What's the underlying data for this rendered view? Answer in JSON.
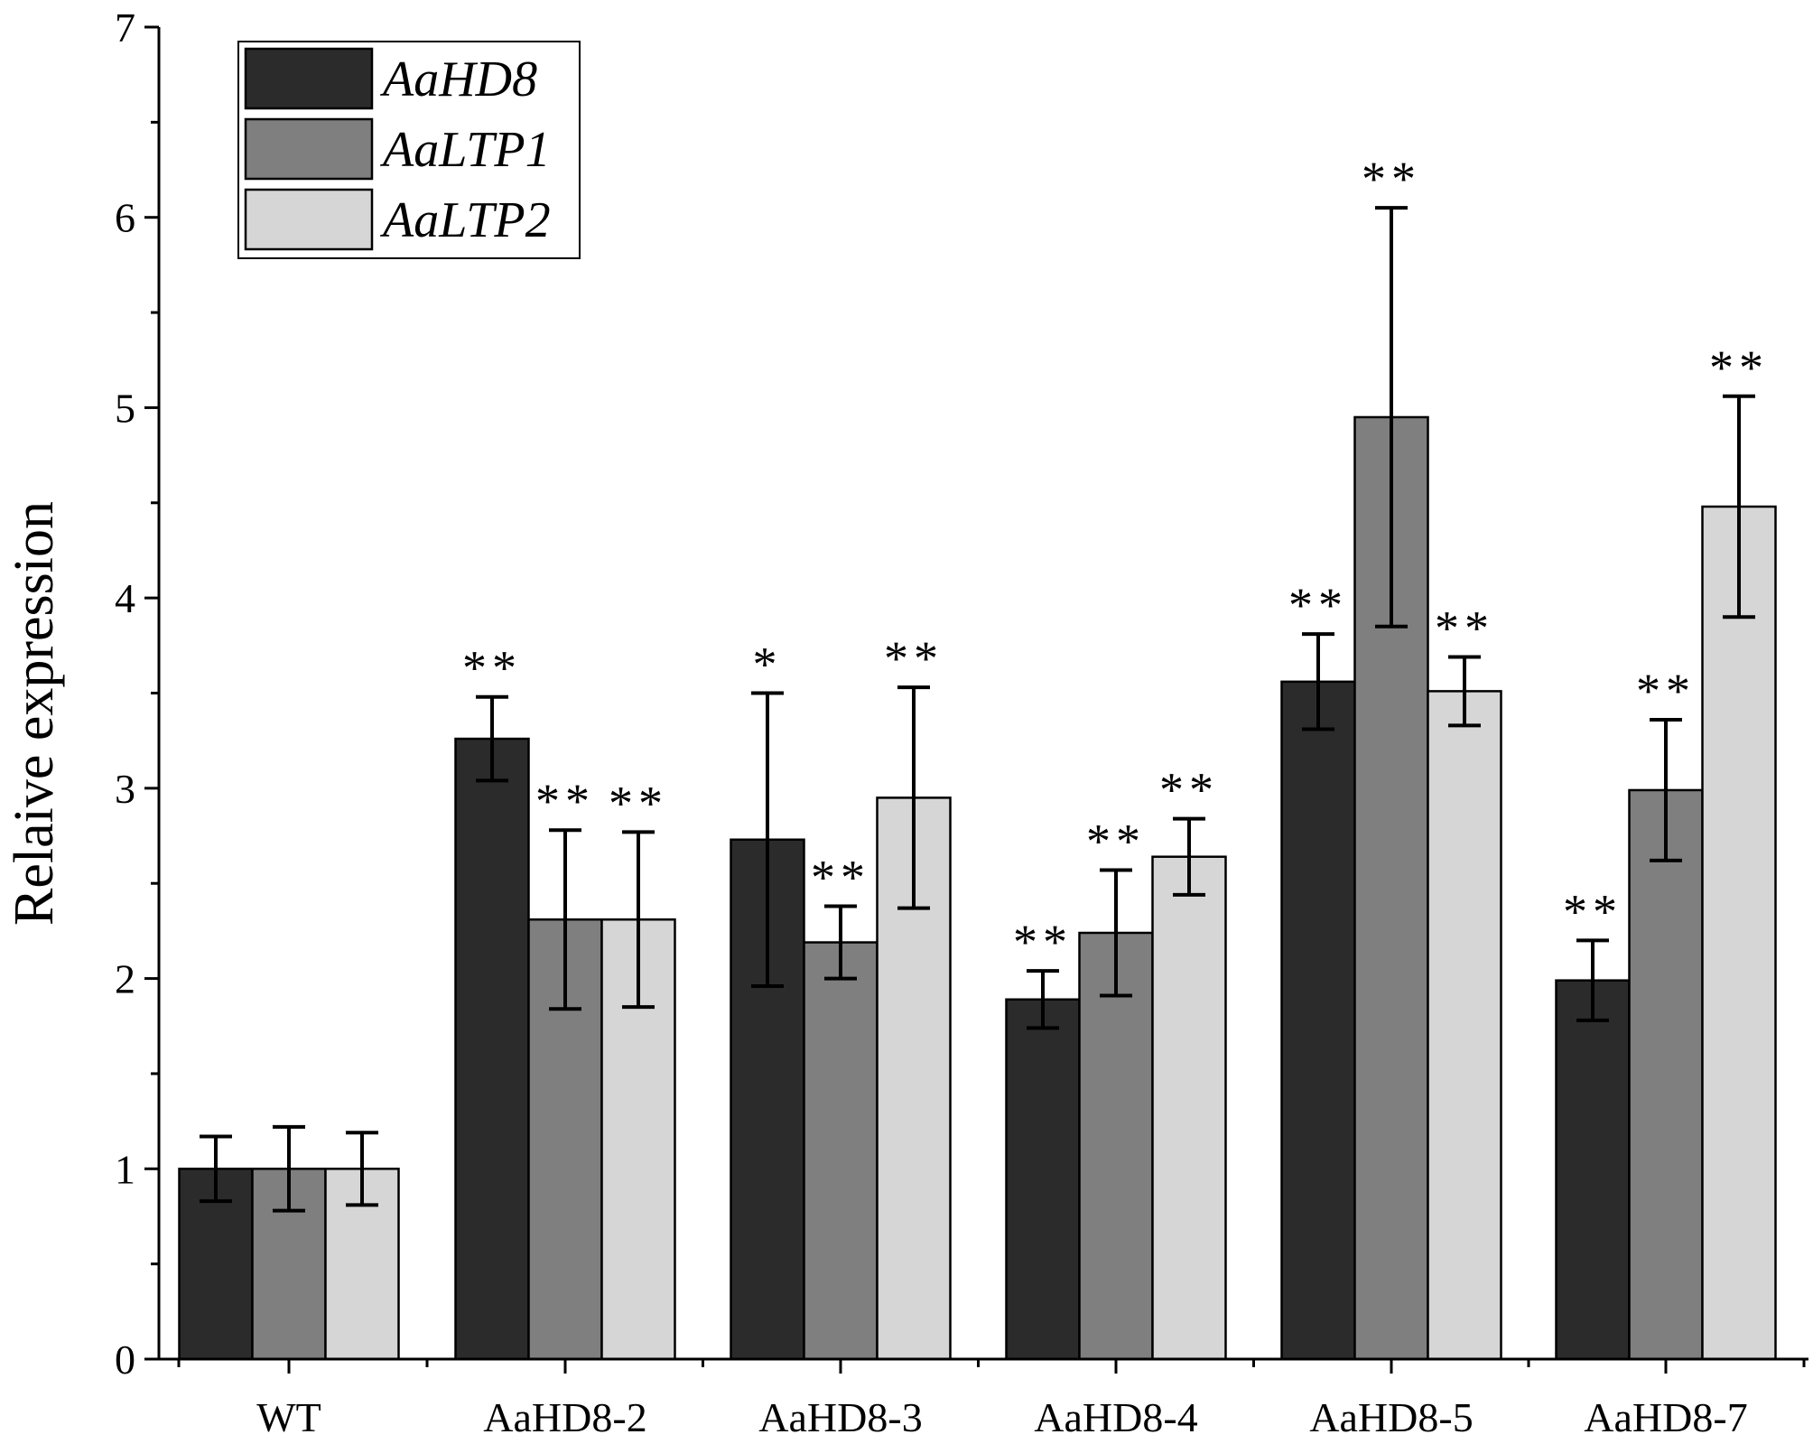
{
  "chart_data": {
    "type": "bar",
    "title": "",
    "xlabel": "",
    "ylabel": "Relaive expression",
    "ylim": [
      0,
      7
    ],
    "yticks": [
      0,
      1,
      2,
      3,
      4,
      5,
      6,
      7
    ],
    "categories": [
      "WT",
      "AaHD8-2",
      "AaHD8-3",
      "AaHD8-4",
      "AaHD8-5",
      "AaHD8-7"
    ],
    "grid": false,
    "legend_position": "top-left",
    "series": [
      {
        "name": "AaHD8",
        "color": "#2b2b2b",
        "values": [
          1.0,
          3.26,
          2.73,
          1.89,
          3.56,
          1.99
        ],
        "errors": [
          0.17,
          0.22,
          0.77,
          0.15,
          0.25,
          0.21
        ],
        "significance": [
          "",
          "**",
          "*",
          "**",
          "**",
          "**"
        ]
      },
      {
        "name": "AaLTP1",
        "color": "#7f7f7f",
        "values": [
          1.0,
          2.31,
          2.19,
          2.24,
          4.95,
          2.99
        ],
        "errors": [
          0.22,
          0.47,
          0.19,
          0.33,
          1.1,
          0.37
        ],
        "significance": [
          "",
          "**",
          "**",
          "**",
          "**",
          "**"
        ]
      },
      {
        "name": "AaLTP2",
        "color": "#d6d6d6",
        "values": [
          1.0,
          2.31,
          2.95,
          2.64,
          3.51,
          4.48
        ],
        "errors": [
          0.19,
          0.46,
          0.58,
          0.2,
          0.18,
          0.58
        ],
        "significance": [
          "",
          "**",
          "**",
          "**",
          "**",
          "**"
        ]
      }
    ]
  }
}
